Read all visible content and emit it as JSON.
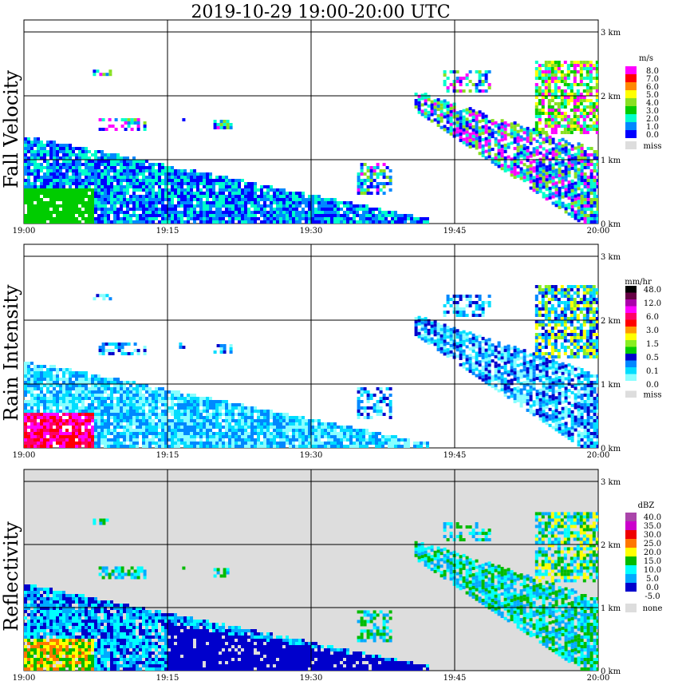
{
  "title": "2019-10-29   19:00-20:00 UTC",
  "colors": {
    "miss": "#dddddd",
    "background": "#ffffff"
  },
  "chart_data": [
    {
      "type": "heatmap",
      "panel": "fall_velocity",
      "ylabel": "Fall Velocity",
      "x_ticks": [
        "19:00",
        "19:15",
        "19:30",
        "19:45",
        "20:00"
      ],
      "x_range_utc": [
        "19:00",
        "20:00"
      ],
      "y_ticks": [
        "0 km",
        "1 km",
        "2 km",
        "3 km"
      ],
      "y_range_km": [
        0,
        3
      ],
      "grid": true,
      "legend": {
        "unit": "m/s",
        "entries": [
          {
            "label": "8.0",
            "color": "#ff00ff"
          },
          {
            "label": "7.0",
            "color": "#ff0000"
          },
          {
            "label": "6.0",
            "color": "#ff8800"
          },
          {
            "label": "5.0",
            "color": "#ffff00"
          },
          {
            "label": "4.0",
            "color": "#88e022"
          },
          {
            "label": "3.0",
            "color": "#00cc00"
          },
          {
            "label": "2.0",
            "color": "#00ffcc"
          },
          {
            "label": "1.0",
            "color": "#0088ff"
          },
          {
            "label": "0.0",
            "color": "#0000ff"
          },
          {
            "label": "miss",
            "color": "#dddddd"
          }
        ]
      }
    },
    {
      "type": "heatmap",
      "panel": "rain_intensity",
      "ylabel": "Rain Intensity",
      "x_ticks": [
        "19:00",
        "19:15",
        "19:30",
        "19:45",
        "20:00"
      ],
      "x_range_utc": [
        "19:00",
        "20:00"
      ],
      "y_ticks": [
        "0 km",
        "1 km",
        "2 km",
        "3 km"
      ],
      "y_range_km": [
        0,
        3
      ],
      "grid": true,
      "legend": {
        "unit": "mm/hr",
        "entries": [
          {
            "label": "48.0",
            "color": "#000000"
          },
          {
            "label": "",
            "color": "#660044"
          },
          {
            "label": "12.0",
            "color": "#aa00aa"
          },
          {
            "label": "",
            "color": "#ff00ff"
          },
          {
            "label": "6.0",
            "color": "#ff0066"
          },
          {
            "label": "",
            "color": "#ff0000"
          },
          {
            "label": "3.0",
            "color": "#ff9900"
          },
          {
            "label": "",
            "color": "#ffff00"
          },
          {
            "label": "1.5",
            "color": "#88ee22"
          },
          {
            "label": "",
            "color": "#00cc00"
          },
          {
            "label": "0.5",
            "color": "#0000cc"
          },
          {
            "label": "",
            "color": "#0088ff"
          },
          {
            "label": "0.1",
            "color": "#00ddff"
          },
          {
            "label": "",
            "color": "#88ffff"
          },
          {
            "label": "0.0",
            "color": "#ffffff"
          },
          {
            "label": "miss",
            "color": "#dddddd"
          }
        ]
      }
    },
    {
      "type": "heatmap",
      "panel": "reflectivity",
      "ylabel": "Reflectivity",
      "x_ticks": [
        "19:00",
        "19:15",
        "19:30",
        "19:45",
        "20:00"
      ],
      "x_range_utc": [
        "19:00",
        "20:00"
      ],
      "y_ticks": [
        "0 km",
        "1 km",
        "2 km",
        "3 km"
      ],
      "y_range_km": [
        0,
        3
      ],
      "grid": true,
      "legend": {
        "unit": "dBZ",
        "entries": [
          {
            "label": "40.0",
            "color": "#aa44aa"
          },
          {
            "label": "35.0",
            "color": "#cc00cc"
          },
          {
            "label": "30.0",
            "color": "#ee0000"
          },
          {
            "label": "25.0",
            "color": "#ff7700"
          },
          {
            "label": "20.0",
            "color": "#ffff00"
          },
          {
            "label": "15.0",
            "color": "#00bb00"
          },
          {
            "label": "10.0",
            "color": "#00ffff"
          },
          {
            "label": "5.0",
            "color": "#00aaff"
          },
          {
            "label": "0.0",
            "color": "#0000cc"
          },
          {
            "label": "-5.0",
            "color": "#ffffff"
          },
          {
            "label": "none",
            "color": "#dddddd"
          }
        ]
      }
    }
  ]
}
